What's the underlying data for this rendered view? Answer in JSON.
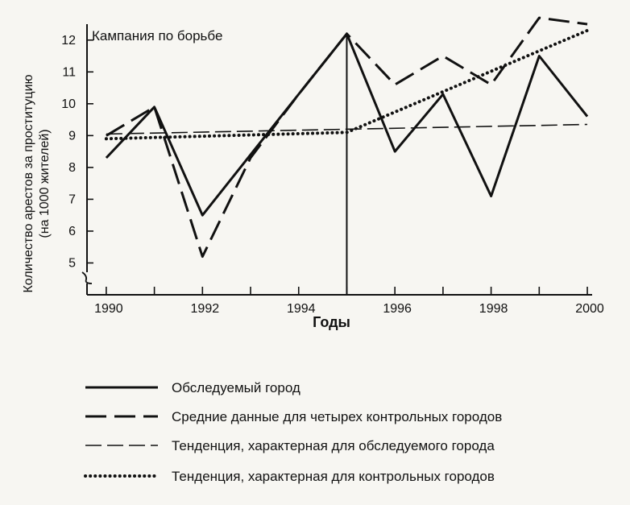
{
  "chart_data": {
    "type": "line",
    "annotation": "Кампания по борьбе",
    "annotation_x": 1995,
    "xlabel": "Годы",
    "ylabel": "Количество арестов за проституцию",
    "ylabel2": "(на 1000 жителей)",
    "xlim": [
      1989.6,
      2000.1
    ],
    "ylim": [
      4.0,
      12.5
    ],
    "x_ticks": [
      1990,
      1992,
      1994,
      1996,
      1998,
      2000
    ],
    "y_ticks": [
      5,
      6,
      7,
      8,
      9,
      10,
      11,
      12
    ],
    "axis_break": true,
    "series": [
      {
        "name": "Обследуемый город",
        "style": "solid",
        "x": [
          1990,
          1991,
          1992,
          1993,
          1994,
          1995,
          1996,
          1997,
          1998,
          1999,
          2000
        ],
        "values": [
          8.3,
          9.9,
          6.5,
          8.4,
          10.3,
          12.2,
          8.5,
          10.3,
          7.1,
          11.5,
          9.6
        ]
      },
      {
        "name": "Средние данные для четырех контрольных городов",
        "style": "long-dash",
        "x": [
          1990,
          1991,
          1992,
          1993,
          1994,
          1995,
          1996,
          1997,
          1998,
          1999,
          2000
        ],
        "values": [
          9.0,
          9.9,
          5.2,
          8.3,
          10.3,
          12.2,
          10.6,
          11.5,
          10.6,
          12.7,
          12.5
        ]
      },
      {
        "name": "Тенденция, характерная для обследуемого города",
        "style": "thin-dash",
        "x": [
          1990,
          2000
        ],
        "values": [
          9.05,
          9.35
        ]
      },
      {
        "name": "Тенденция, характерная для контрольных городов",
        "style": "dotted",
        "x": [
          1990,
          1995,
          2000
        ],
        "values": [
          8.9,
          9.1,
          12.3
        ]
      }
    ]
  }
}
